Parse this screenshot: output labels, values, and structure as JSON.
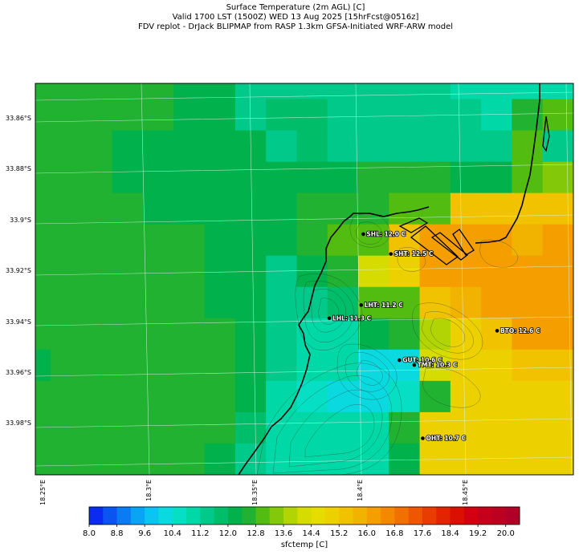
{
  "title": {
    "line1": "Surface Temperature (2m AGL) [C]",
    "line2": "Valid 1700 LST (1500Z) WED 13 Aug 2025 [15hrFcst@0516z]",
    "line3": "FDV replot - DrJack BLIPMAP from RASP 1.3km GFSA-Initiated WRF-ARW model"
  },
  "lat_labels": [
    "33.86°S",
    "33.88°S",
    "33.9°S",
    "33.92°S",
    "33.94°S",
    "33.96°S",
    "33.98°S"
  ],
  "lon_labels": [
    "18.25°E",
    "18.3°E",
    "18.35°E",
    "18.4°E",
    "18.45°E"
  ],
  "stations": [
    {
      "id": "SHL",
      "label": "SHL: 12.0 C",
      "lat": -33.907,
      "lon": 18.401
    },
    {
      "id": "SHT",
      "label": "SHT: 12.5 C",
      "lat": -33.915,
      "lon": 18.414
    },
    {
      "id": "LHT",
      "label": "LHT: 11.2 C",
      "lat": -33.935,
      "lon": 18.4
    },
    {
      "id": "LHL",
      "label": "LHL: 11.3 C",
      "lat": -33.94,
      "lon": 18.385
    },
    {
      "id": "BTO",
      "label": "BTO: 12.6 C",
      "lat": -33.946,
      "lon": 18.464
    },
    {
      "id": "GUT",
      "label": "GUT: 10.6 C",
      "lat": -33.957,
      "lon": 18.418
    },
    {
      "id": "TMT",
      "label": "TMT: 10.3 C",
      "lat": -33.959,
      "lon": 18.425
    },
    {
      "id": "OHT",
      "label": "OHT: 10.7 C",
      "lat": -33.988,
      "lon": 18.429
    }
  ],
  "colorbar": {
    "label": "sfctemp [C]",
    "ticks": [
      "8.0",
      "8.8",
      "9.6",
      "10.4",
      "11.2",
      "12.0",
      "12.8",
      "13.6",
      "14.4",
      "15.2",
      "16.0",
      "16.8",
      "17.6",
      "18.4",
      "19.2",
      "20.0"
    ],
    "min": 8.0,
    "max": 20.4,
    "step": 0.4,
    "colors": [
      "#0b2cf0",
      "#0a54f2",
      "#0a7cf3",
      "#0aa4f5",
      "#0bc4f2",
      "#0bd9e0",
      "#06dfc4",
      "#00d8a8",
      "#00c98a",
      "#00bd6a",
      "#00b14c",
      "#20b230",
      "#52bd10",
      "#84c80a",
      "#b2d404",
      "#d6dc00",
      "#e6dc00",
      "#ecd000",
      "#f0c200",
      "#f2b200",
      "#f49e00",
      "#f48800",
      "#f27000",
      "#ee5600",
      "#e83c00",
      "#e22400",
      "#da1000",
      "#d20010",
      "#c4001a",
      "#bc0020",
      "#b00028"
    ]
  },
  "grid_temps": [
    [
      12.6,
      12.6,
      12.6,
      12.5,
      12.4,
      12.2,
      12.0,
      11.6,
      11.6,
      11.6,
      11.6,
      11.6,
      11.5,
      11.4,
      11.2,
      11.1,
      10.9,
      10.8
    ],
    [
      12.6,
      12.6,
      12.4,
      12.4,
      12.4,
      12.2,
      12.0,
      11.6,
      11.8,
      11.7,
      11.6,
      11.6,
      11.6,
      11.5,
      11.4,
      11.2,
      12.4,
      12.8
    ],
    [
      12.6,
      12.6,
      12.6,
      12.2,
      12.2,
      12.2,
      12.2,
      12.2,
      11.6,
      11.7,
      11.6,
      11.6,
      11.6,
      11.6,
      11.6,
      11.6,
      12.8,
      11.6
    ],
    [
      12.6,
      12.6,
      12.6,
      12.2,
      12.2,
      12.2,
      12.2,
      12.2,
      12.0,
      12.0,
      12.0,
      12.5,
      12.6,
      12.4,
      12.2,
      12.2,
      13.0,
      13.4
    ],
    [
      12.6,
      12.6,
      12.6,
      12.4,
      12.2,
      12.2,
      12.2,
      12.2,
      12.1,
      12.6,
      12.6,
      12.6,
      12.8,
      12.9,
      15.3,
      15.3,
      15.3,
      15.3
    ],
    [
      12.6,
      12.6,
      12.6,
      12.4,
      12.4,
      12.4,
      12.2,
      12.2,
      12.1,
      12.4,
      12.8,
      12.8,
      15.4,
      16.2,
      16.2,
      16.2,
      15.8,
      16.0
    ],
    [
      12.6,
      12.6,
      12.6,
      12.6,
      12.4,
      12.4,
      12.2,
      12.1,
      11.6,
      12.1,
      12.4,
      14.0,
      15.0,
      16.2,
      16.2,
      16.2,
      16.2,
      16.4
    ],
    [
      12.6,
      12.6,
      12.6,
      12.6,
      12.4,
      12.4,
      12.2,
      12.1,
      11.5,
      11.4,
      11.7,
      13.0,
      12.8,
      15.4,
      15.7,
      16.0,
      16.2,
      16.2
    ],
    [
      12.6,
      12.6,
      12.6,
      12.6,
      12.6,
      12.6,
      12.4,
      12.1,
      11.6,
      11.2,
      11.0,
      12.0,
      12.6,
      13.8,
      15.2,
      15.4,
      16.0,
      16.0
    ],
    [
      12.2,
      12.6,
      12.6,
      12.6,
      12.6,
      12.6,
      12.4,
      12.2,
      11.4,
      11.0,
      10.8,
      10.3,
      10.3,
      14.2,
      15.2,
      15.2,
      15.4,
      15.4
    ],
    [
      12.6,
      12.6,
      12.6,
      12.6,
      12.6,
      12.6,
      12.4,
      12.0,
      11.2,
      10.6,
      10.2,
      10.2,
      10.4,
      12.4,
      15.2,
      15.2,
      15.2,
      15.2
    ],
    [
      12.6,
      12.6,
      12.6,
      12.6,
      12.6,
      12.6,
      12.4,
      11.7,
      11.2,
      10.8,
      10.8,
      10.8,
      12.4,
      15.2,
      15.2,
      15.2,
      15.2,
      15.2
    ],
    [
      12.6,
      12.6,
      12.6,
      12.6,
      12.6,
      12.4,
      12.2,
      11.6,
      11.2,
      11.0,
      11.0,
      11.2,
      12.2,
      15.2,
      15.2,
      15.2,
      15.2,
      15.2
    ]
  ]
}
